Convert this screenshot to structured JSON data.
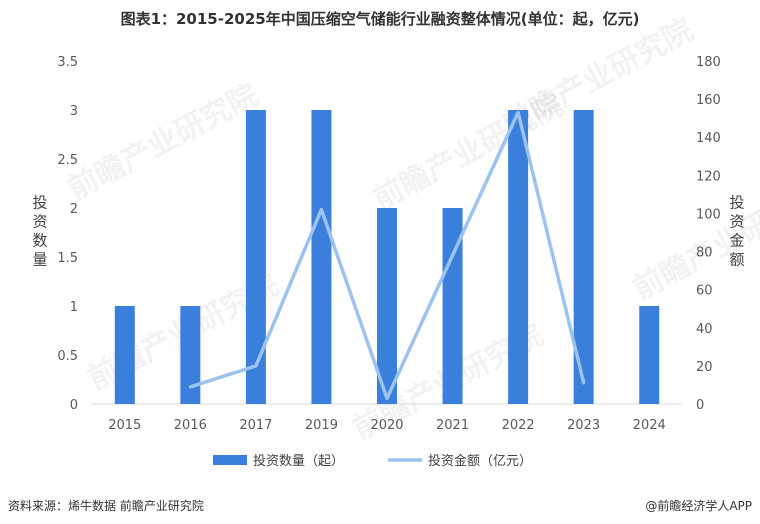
{
  "title": "图表1：2015-2025年中国压缩空气储能行业融资整体情况(单位：起，亿元)",
  "source": "资料来源：烯牛数据 前瞻产业研究院",
  "credit": "@前瞻经济学人APP",
  "watermark_text": "前瞻产业研究院",
  "colors": {
    "bar": "#3b7fdc",
    "line": "#9cc3f0"
  },
  "chart_data": {
    "type": "bar",
    "categories": [
      "2015",
      "2016",
      "2017",
      "2019",
      "2020",
      "2021",
      "2022",
      "2023",
      "2024"
    ],
    "series": [
      {
        "name": "投资数量（起）",
        "type": "bar",
        "axis": "left",
        "values": [
          1,
          1,
          3,
          3,
          2,
          2,
          3,
          3,
          1
        ]
      },
      {
        "name": "投资金额（亿元）",
        "type": "line",
        "axis": "right",
        "values": [
          null,
          9,
          20,
          102,
          3,
          null,
          153,
          11,
          null
        ]
      }
    ],
    "ylabel_left": "投资数量",
    "ylabel_right": "投资金额",
    "ylim_left": [
      0,
      3.5
    ],
    "ylim_right": [
      0,
      180
    ],
    "yticks_left": [
      "0",
      "0.5",
      "1",
      "1.5",
      "2",
      "2.5",
      "3",
      "3.5"
    ],
    "yticks_right": [
      "0",
      "20",
      "40",
      "60",
      "80",
      "100",
      "120",
      "140",
      "160",
      "180"
    ],
    "grid": false,
    "legend": "bottom"
  }
}
